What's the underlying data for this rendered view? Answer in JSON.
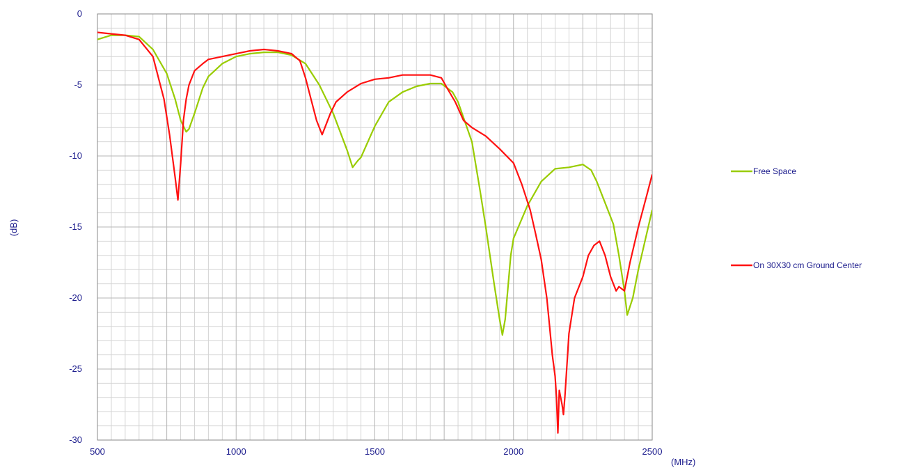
{
  "chart_data": {
    "type": "line",
    "xlabel": "(MHz)",
    "ylabel": "(dB)",
    "xlim": [
      500,
      2500
    ],
    "ylim": [
      -30,
      0
    ],
    "x_ticks": [
      "500",
      "1000",
      "1500",
      "2000",
      "2500"
    ],
    "y_ticks": [
      "0",
      "-5",
      "-10",
      "-15",
      "-20",
      "-25",
      "-30"
    ],
    "grid": true,
    "legend_position": "right",
    "series": [
      {
        "name": "Free Space",
        "color": "#99cc00",
        "x": [
          500,
          550,
          600,
          650,
          700,
          750,
          780,
          800,
          820,
          830,
          850,
          880,
          900,
          950,
          1000,
          1050,
          1100,
          1150,
          1200,
          1250,
          1300,
          1350,
          1400,
          1420,
          1440,
          1450,
          1500,
          1550,
          1600,
          1650,
          1700,
          1740,
          1780,
          1800,
          1850,
          1880,
          1900,
          1930,
          1950,
          1960,
          1970,
          1990,
          2000,
          2050,
          2100,
          2150,
          2200,
          2250,
          2280,
          2300,
          2330,
          2360,
          2380,
          2400,
          2410,
          2430,
          2450,
          2500
        ],
        "y": [
          -1.8,
          -1.5,
          -1.5,
          -1.6,
          -2.5,
          -4.2,
          -6.0,
          -7.5,
          -8.3,
          -8.1,
          -7.0,
          -5.2,
          -4.4,
          -3.5,
          -3.0,
          -2.8,
          -2.7,
          -2.7,
          -2.9,
          -3.5,
          -5.0,
          -7.0,
          -9.6,
          -10.8,
          -10.3,
          -10.1,
          -7.9,
          -6.2,
          -5.5,
          -5.1,
          -4.9,
          -4.9,
          -5.5,
          -6.2,
          -9.0,
          -12.5,
          -15.0,
          -19.0,
          -21.5,
          -22.6,
          -21.5,
          -17.0,
          -15.8,
          -13.5,
          -11.8,
          -10.9,
          -10.8,
          -10.6,
          -11.0,
          -11.8,
          -13.3,
          -14.8,
          -17.0,
          -19.5,
          -21.2,
          -20.0,
          -18.0,
          -13.8
        ]
      },
      {
        "name": "On 30X30 cm Ground Center",
        "color": "#ff1111",
        "x": [
          500,
          550,
          600,
          650,
          700,
          740,
          760,
          780,
          790,
          800,
          810,
          820,
          830,
          850,
          880,
          900,
          950,
          1000,
          1050,
          1100,
          1150,
          1200,
          1230,
          1250,
          1270,
          1290,
          1310,
          1320,
          1340,
          1360,
          1400,
          1450,
          1500,
          1550,
          1600,
          1650,
          1700,
          1740,
          1760,
          1790,
          1820,
          1850,
          1900,
          1950,
          2000,
          2030,
          2060,
          2080,
          2100,
          2120,
          2130,
          2140,
          2150,
          2155,
          2160,
          2165,
          2170,
          2175,
          2180,
          2185,
          2190,
          2200,
          2220,
          2250,
          2270,
          2290,
          2310,
          2330,
          2350,
          2370,
          2380,
          2400,
          2420,
          2450,
          2480,
          2500
        ],
        "y": [
          -1.3,
          -1.4,
          -1.5,
          -1.8,
          -3.0,
          -6.0,
          -8.5,
          -11.5,
          -13.1,
          -10.5,
          -7.5,
          -6.0,
          -5.0,
          -4.0,
          -3.5,
          -3.2,
          -3.0,
          -2.8,
          -2.6,
          -2.5,
          -2.6,
          -2.8,
          -3.3,
          -4.5,
          -6.0,
          -7.5,
          -8.5,
          -8.0,
          -7.0,
          -6.2,
          -5.5,
          -4.9,
          -4.6,
          -4.5,
          -4.3,
          -4.3,
          -4.3,
          -4.5,
          -5.2,
          -6.2,
          -7.5,
          -8.0,
          -8.6,
          -9.5,
          -10.5,
          -12.0,
          -13.8,
          -15.5,
          -17.3,
          -20.0,
          -22.0,
          -24.0,
          -25.5,
          -27.0,
          -29.5,
          -26.5,
          -27.0,
          -27.5,
          -28.2,
          -27.0,
          -25.5,
          -22.5,
          -20.0,
          -18.5,
          -17.0,
          -16.3,
          -16.0,
          -17.0,
          -18.5,
          -19.5,
          -19.2,
          -19.5,
          -17.5,
          -15.0,
          -12.8,
          -11.3
        ]
      }
    ]
  }
}
